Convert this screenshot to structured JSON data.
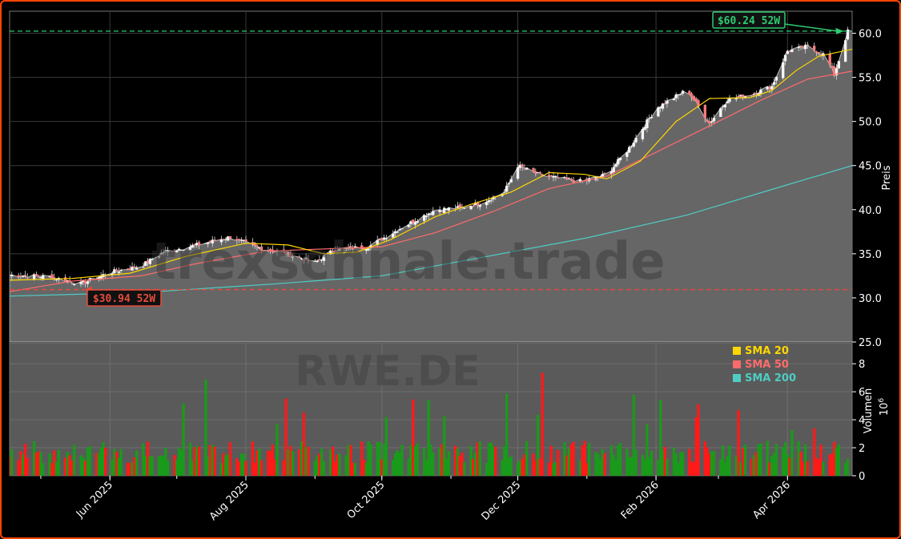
{
  "chart_data": {
    "type": "candlestick",
    "ticker_watermark": "RWE.DE",
    "site_watermark": "trexschnale.trade",
    "price_axis": {
      "label": "Preis",
      "range": [
        25,
        62.5
      ],
      "ticks": [
        25.0,
        30.0,
        35.0,
        40.0,
        45.0,
        50.0,
        55.0,
        60.0
      ]
    },
    "volume_axis": {
      "label": "Volumen",
      "unit": "10^6",
      "unit_base": "10",
      "unit_exp": "6",
      "range": [
        0,
        9.5
      ],
      "ticks": [
        0,
        2,
        4,
        6,
        8
      ]
    },
    "x_axis": {
      "range": [
        "2025-04-17",
        "2026-04-30"
      ],
      "ticks": [
        {
          "date": "2025-06-01",
          "label": "Jun 2025"
        },
        {
          "date": "2025-08-01",
          "label": "Aug 2025"
        },
        {
          "date": "2025-10-01",
          "label": "Oct 2025"
        },
        {
          "date": "2025-12-01",
          "label": "Dec 2025"
        },
        {
          "date": "2026-02-01",
          "label": "Feb 2026"
        },
        {
          "date": "2026-04-01",
          "label": "Apr 2026"
        }
      ]
    },
    "high_52w": {
      "value": 60.24,
      "label": "$60.24 52W",
      "color": "#2ecc71",
      "date": "2026-04-24"
    },
    "low_52w": {
      "value": 30.94,
      "label": "$30.94 52W",
      "color": "#e74c3c",
      "date": "2025-05-19"
    },
    "legend": {
      "placement": "volume-panel top-right",
      "items": [
        {
          "name": "SMA 20",
          "color": "#ffd700"
        },
        {
          "name": "SMA 50",
          "color": "#ff6b6b"
        },
        {
          "name": "SMA 200",
          "color": "#4ecdc4"
        }
      ]
    },
    "price_path": [
      [
        "2025-04-17",
        32.6
      ],
      [
        "2025-05-05",
        32.4
      ],
      [
        "2025-05-19",
        31.6
      ],
      [
        "2025-06-01",
        32.9
      ],
      [
        "2025-06-15",
        33.6
      ],
      [
        "2025-06-25",
        35.2
      ],
      [
        "2025-07-10",
        36.0
      ],
      [
        "2025-07-25",
        36.9
      ],
      [
        "2025-08-05",
        35.8
      ],
      [
        "2025-08-20",
        35.0
      ],
      [
        "2025-09-01",
        34.0
      ],
      [
        "2025-09-10",
        35.5
      ],
      [
        "2025-09-25",
        35.8
      ],
      [
        "2025-10-10",
        38.0
      ],
      [
        "2025-10-25",
        40.0
      ],
      [
        "2025-11-05",
        40.2
      ],
      [
        "2025-11-15",
        40.8
      ],
      [
        "2025-11-25",
        42.0
      ],
      [
        "2025-12-01",
        45.0
      ],
      [
        "2025-12-10",
        44.0
      ],
      [
        "2025-12-20",
        43.5
      ],
      [
        "2025-12-30",
        43.2
      ],
      [
        "2026-01-10",
        44.0
      ],
      [
        "2026-01-20",
        47.0
      ],
      [
        "2026-02-01",
        51.5
      ],
      [
        "2026-02-15",
        53.6
      ],
      [
        "2026-02-25",
        49.8
      ],
      [
        "2026-03-05",
        52.5
      ],
      [
        "2026-03-15",
        53.0
      ],
      [
        "2026-03-25",
        54.0
      ],
      [
        "2026-04-01",
        58.0
      ],
      [
        "2026-04-10",
        58.5
      ],
      [
        "2026-04-18",
        57.5
      ],
      [
        "2026-04-22",
        55.3
      ],
      [
        "2026-04-28",
        60.2
      ]
    ],
    "sma20": [
      [
        "2025-04-17",
        32.0
      ],
      [
        "2025-05-15",
        32.2
      ],
      [
        "2025-06-10",
        32.8
      ],
      [
        "2025-07-05",
        34.7
      ],
      [
        "2025-08-01",
        36.2
      ],
      [
        "2025-08-20",
        36.0
      ],
      [
        "2025-09-05",
        35.0
      ],
      [
        "2025-09-20",
        35.2
      ],
      [
        "2025-10-05",
        36.6
      ],
      [
        "2025-10-25",
        39.2
      ],
      [
        "2025-11-10",
        40.6
      ],
      [
        "2025-11-28",
        42.0
      ],
      [
        "2025-12-15",
        44.2
      ],
      [
        "2025-12-31",
        44.0
      ],
      [
        "2026-01-10",
        43.5
      ],
      [
        "2026-01-25",
        45.5
      ],
      [
        "2026-02-10",
        50.0
      ],
      [
        "2026-02-25",
        52.6
      ],
      [
        "2026-03-15",
        52.7
      ],
      [
        "2026-03-25",
        53.5
      ],
      [
        "2026-04-05",
        55.8
      ],
      [
        "2026-04-15",
        57.4
      ],
      [
        "2026-04-30",
        58.2
      ]
    ],
    "sma50": [
      [
        "2025-04-17",
        30.7
      ],
      [
        "2025-05-15",
        31.9
      ],
      [
        "2025-06-15",
        32.5
      ],
      [
        "2025-07-10",
        33.9
      ],
      [
        "2025-08-10",
        35.3
      ],
      [
        "2025-09-10",
        35.6
      ],
      [
        "2025-10-01",
        35.8
      ],
      [
        "2025-10-25",
        37.4
      ],
      [
        "2025-11-20",
        39.8
      ],
      [
        "2025-12-15",
        42.4
      ],
      [
        "2026-01-10",
        43.8
      ],
      [
        "2026-02-01",
        46.5
      ],
      [
        "2026-02-25",
        49.5
      ],
      [
        "2026-03-20",
        52.4
      ],
      [
        "2026-04-10",
        54.8
      ],
      [
        "2026-04-30",
        55.7
      ]
    ],
    "sma200": [
      [
        "2025-04-17",
        30.2
      ],
      [
        "2025-06-15",
        30.6
      ],
      [
        "2025-08-15",
        31.6
      ],
      [
        "2025-10-01",
        32.5
      ],
      [
        "2025-11-15",
        34.6
      ],
      [
        "2026-01-01",
        36.8
      ],
      [
        "2026-02-15",
        39.4
      ],
      [
        "2026-03-25",
        42.3
      ],
      [
        "2026-04-30",
        45.0
      ]
    ]
  }
}
